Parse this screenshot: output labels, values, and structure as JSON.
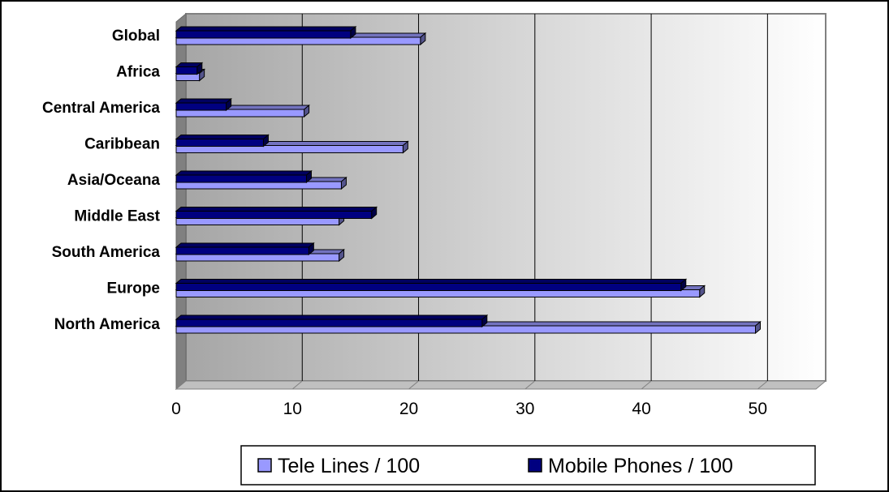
{
  "chart_data": {
    "type": "bar",
    "orientation": "horizontal",
    "three_d": true,
    "categories": [
      "Global",
      "Africa",
      "Central America",
      "Caribbean",
      "Asia/Oceana",
      "Middle East",
      "South America",
      "Europe",
      "North America"
    ],
    "series": [
      {
        "name": "Tele Lines / 100",
        "color": "#9999ff",
        "values": [
          21,
          2,
          11,
          19.5,
          14.2,
          14,
          14,
          45,
          49.8
        ]
      },
      {
        "name": "Mobile Phones / 100",
        "color": "#000080",
        "values": [
          15,
          1.8,
          4.3,
          7.5,
          11.2,
          16.8,
          11.4,
          43.4,
          26.3
        ]
      }
    ],
    "xlim": [
      0,
      55
    ],
    "xticks": [
      0,
      10,
      20,
      30,
      40,
      50
    ],
    "grid": true,
    "legend": "bottom",
    "title": "",
    "xlabel": "",
    "ylabel": ""
  }
}
